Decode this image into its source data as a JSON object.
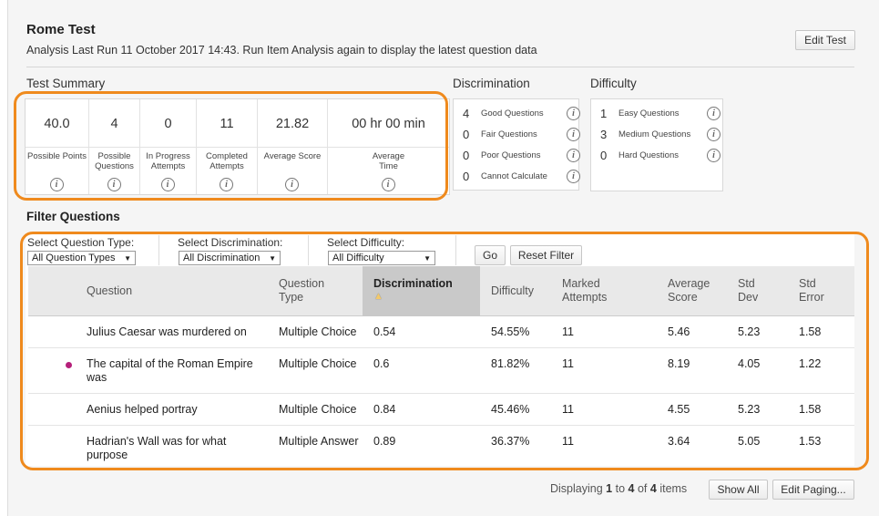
{
  "header": {
    "title": "Rome Test",
    "subtitle": "Analysis Last Run  11 October 2017 14:43.  Run Item Analysis again to display the latest question data",
    "edit_test_label": "Edit Test"
  },
  "summary": {
    "label": "Test Summary",
    "stats": [
      {
        "value": "40.0",
        "label": "Possible Points"
      },
      {
        "value": "4",
        "label": "Possible Questions"
      },
      {
        "value": "0",
        "label": "In Progress Attempts"
      },
      {
        "value": "11",
        "label": "Completed Attempts"
      },
      {
        "value": "21.82",
        "label": "Average Score"
      },
      {
        "value": "00 hr 00 min",
        "label": "Average Time"
      }
    ]
  },
  "discrimination": {
    "label": "Discrimination",
    "rows": [
      {
        "count": "4",
        "label": "Good Questions"
      },
      {
        "count": "0",
        "label": "Fair Questions"
      },
      {
        "count": "0",
        "label": "Poor Questions"
      },
      {
        "count": "0",
        "label": "Cannot Calculate"
      }
    ]
  },
  "difficulty": {
    "label": "Difficulty",
    "rows": [
      {
        "count": "1",
        "label": "Easy Questions"
      },
      {
        "count": "3",
        "label": "Medium Questions"
      },
      {
        "count": "0",
        "label": "Hard Questions"
      }
    ]
  },
  "info_glyph": "i",
  "filter": {
    "title": "Filter Questions",
    "type_label": "Select Question Type:",
    "type_value": "All Question Types",
    "disc_label": "Select Discrimination:",
    "disc_value": "All Discrimination",
    "diff_label": "Select Difficulty:",
    "diff_value": "All Difficulty",
    "go_label": "Go",
    "reset_label": "Reset Filter"
  },
  "table": {
    "headers": {
      "question": "Question",
      "type_1": "Question",
      "type_2": "Type",
      "discrimination": "Discrimination",
      "difficulty": "Difficulty",
      "marked_1": "Marked",
      "marked_2": "Attempts",
      "avg_1": "Average",
      "avg_2": "Score",
      "stddev_1": "Std",
      "stddev_2": "Dev",
      "stderr_1": "Std",
      "stderr_2": "Error"
    },
    "rows": [
      {
        "question": "Julius Caesar was murdered on",
        "type": "Multiple Choice",
        "discrimination": "0.54",
        "difficulty": "54.55%",
        "marked": "11",
        "avg": "5.46",
        "stddev": "5.23",
        "stderr": "1.58",
        "flag": false
      },
      {
        "question": "The capital of the Roman Empire was",
        "type": "Multiple Choice",
        "discrimination": "0.6",
        "difficulty": "81.82%",
        "marked": "11",
        "avg": "8.19",
        "stddev": "4.05",
        "stderr": "1.22",
        "flag": true
      },
      {
        "question": "Aenius helped portray",
        "type": "Multiple Choice",
        "discrimination": "0.84",
        "difficulty": "45.46%",
        "marked": "11",
        "avg": "4.55",
        "stddev": "5.23",
        "stderr": "1.58",
        "flag": false
      },
      {
        "question": "Hadrian's Wall was for what purpose",
        "type": "Multiple Answer",
        "discrimination": "0.89",
        "difficulty": "36.37%",
        "marked": "11",
        "avg": "3.64",
        "stddev": "5.05",
        "stderr": "1.53",
        "flag": false
      }
    ]
  },
  "footer": {
    "prefix": "Displaying",
    "from": "1",
    "to_word": "to",
    "to": "4",
    "of_word": "of",
    "total": "4",
    "suffix": "items",
    "show_all_label": "Show All",
    "edit_paging_label": "Edit Paging..."
  },
  "colors": {
    "highlight": "#ef8a1d",
    "flag_dot": "#b5207a",
    "sorted_header": "#c9c9c9"
  }
}
